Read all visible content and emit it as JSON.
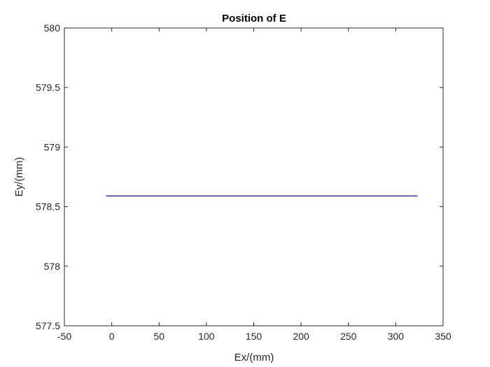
{
  "chart_data": {
    "type": "line",
    "title": "Position of E",
    "xlabel": "Ex/(mm)",
    "ylabel": "Ey/(mm)",
    "xlim": [
      -50,
      350
    ],
    "ylim": [
      577.5,
      580
    ],
    "xticks": [
      -50,
      0,
      50,
      100,
      150,
      200,
      250,
      300,
      350
    ],
    "yticks": [
      577.5,
      578,
      578.5,
      579,
      579.5,
      580
    ],
    "xtick_labels": [
      "-50",
      "0",
      "50",
      "100",
      "150",
      "200",
      "250",
      "300",
      "350"
    ],
    "ytick_labels": [
      "577.5",
      "578",
      "578.5",
      "579",
      "579.5",
      "580"
    ],
    "grid": false,
    "series": [
      {
        "color": "#0000ff",
        "x": [
          -6,
          323
        ],
        "y": [
          578.59,
          578.59
        ]
      }
    ]
  }
}
